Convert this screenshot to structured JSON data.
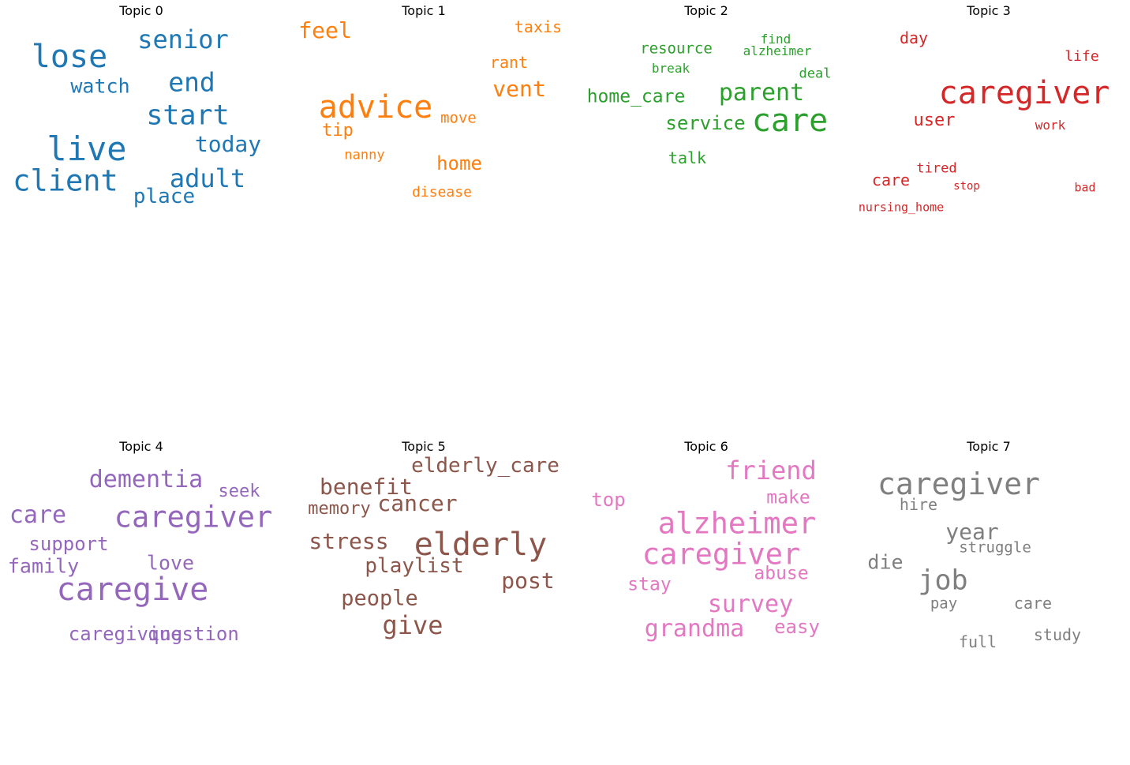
{
  "chart_data": {
    "type": "wordcloud",
    "layout": "grid",
    "grid": "2x4",
    "panels": [
      {
        "title": "Topic 0",
        "color": "#1f77b4",
        "words": [
          {
            "text": "lose",
            "weight": 0.95
          },
          {
            "text": "senior",
            "weight": 0.7
          },
          {
            "text": "watch",
            "weight": 0.55
          },
          {
            "text": "end",
            "weight": 0.75
          },
          {
            "text": "start",
            "weight": 0.8
          },
          {
            "text": "live",
            "weight": 0.95
          },
          {
            "text": "today",
            "weight": 0.6
          },
          {
            "text": "client",
            "weight": 0.9
          },
          {
            "text": "adult",
            "weight": 0.75
          },
          {
            "text": "place",
            "weight": 0.6
          }
        ]
      },
      {
        "title": "Topic 1",
        "color": "#ff7f0e",
        "words": [
          {
            "text": "feel",
            "weight": 0.6
          },
          {
            "text": "taxis",
            "weight": 0.45
          },
          {
            "text": "rant",
            "weight": 0.45
          },
          {
            "text": "vent",
            "weight": 0.65
          },
          {
            "text": "advice",
            "weight": 1.0
          },
          {
            "text": "move",
            "weight": 0.45
          },
          {
            "text": "tip",
            "weight": 0.55
          },
          {
            "text": "nanny",
            "weight": 0.35
          },
          {
            "text": "home",
            "weight": 0.55
          },
          {
            "text": "disease",
            "weight": 0.4
          }
        ]
      },
      {
        "title": "Topic 2",
        "color": "#2ca02c",
        "words": [
          {
            "text": "resource",
            "weight": 0.45
          },
          {
            "text": "find",
            "weight": 0.35
          },
          {
            "text": "alzheimer",
            "weight": 0.35
          },
          {
            "text": "break",
            "weight": 0.35
          },
          {
            "text": "deal",
            "weight": 0.4
          },
          {
            "text": "home_care",
            "weight": 0.6
          },
          {
            "text": "parent",
            "weight": 0.75
          },
          {
            "text": "service",
            "weight": 0.6
          },
          {
            "text": "care",
            "weight": 1.0
          },
          {
            "text": "talk",
            "weight": 0.45
          }
        ]
      },
      {
        "title": "Topic 3",
        "color": "#d62728",
        "words": [
          {
            "text": "day",
            "weight": 0.45
          },
          {
            "text": "life",
            "weight": 0.4
          },
          {
            "text": "caregiver",
            "weight": 1.0
          },
          {
            "text": "user",
            "weight": 0.55
          },
          {
            "text": "work",
            "weight": 0.35
          },
          {
            "text": "tired",
            "weight": 0.35
          },
          {
            "text": "care",
            "weight": 0.45
          },
          {
            "text": "stop",
            "weight": 0.3
          },
          {
            "text": "bad",
            "weight": 0.3
          },
          {
            "text": "nursing_home",
            "weight": 0.3
          }
        ]
      },
      {
        "title": "Topic 4",
        "color": "#9467bd",
        "words": [
          {
            "text": "dementia",
            "weight": 0.7
          },
          {
            "text": "seek",
            "weight": 0.45
          },
          {
            "text": "care",
            "weight": 0.7
          },
          {
            "text": "caregiver",
            "weight": 0.85
          },
          {
            "text": "support",
            "weight": 0.55
          },
          {
            "text": "love",
            "weight": 0.5
          },
          {
            "text": "family",
            "weight": 0.55
          },
          {
            "text": "caregive",
            "weight": 0.95
          },
          {
            "text": "caregiving",
            "weight": 0.55
          },
          {
            "text": "question",
            "weight": 0.55
          }
        ]
      },
      {
        "title": "Topic 5",
        "color": "#8c564b",
        "words": [
          {
            "text": "elderly_care",
            "weight": 0.6
          },
          {
            "text": "benefit",
            "weight": 0.7
          },
          {
            "text": "memory",
            "weight": 0.55
          },
          {
            "text": "cancer",
            "weight": 0.65
          },
          {
            "text": "stress",
            "weight": 0.7
          },
          {
            "text": "elderly",
            "weight": 1.0
          },
          {
            "text": "playlist",
            "weight": 0.65
          },
          {
            "text": "post",
            "weight": 0.65
          },
          {
            "text": "people",
            "weight": 0.6
          },
          {
            "text": "give",
            "weight": 0.75
          }
        ]
      },
      {
        "title": "Topic 6",
        "color": "#e377c2",
        "words": [
          {
            "text": "friend",
            "weight": 0.75
          },
          {
            "text": "top",
            "weight": 0.55
          },
          {
            "text": "make",
            "weight": 0.55
          },
          {
            "text": "alzheimer",
            "weight": 0.9
          },
          {
            "text": "caregiver",
            "weight": 0.95
          },
          {
            "text": "abuse",
            "weight": 0.55
          },
          {
            "text": "stay",
            "weight": 0.55
          },
          {
            "text": "survey",
            "weight": 0.75
          },
          {
            "text": "grandma",
            "weight": 0.75
          },
          {
            "text": "easy",
            "weight": 0.6
          }
        ]
      },
      {
        "title": "Topic 7",
        "color": "#7f7f7f",
        "words": [
          {
            "text": "caregiver",
            "weight": 1.0
          },
          {
            "text": "hire",
            "weight": 0.45
          },
          {
            "text": "year",
            "weight": 0.7
          },
          {
            "text": "struggle",
            "weight": 0.5
          },
          {
            "text": "die",
            "weight": 0.65
          },
          {
            "text": "job",
            "weight": 0.85
          },
          {
            "text": "pay",
            "weight": 0.45
          },
          {
            "text": "care",
            "weight": 0.5
          },
          {
            "text": "full",
            "weight": 0.5
          },
          {
            "text": "study",
            "weight": 0.5
          }
        ]
      }
    ]
  }
}
